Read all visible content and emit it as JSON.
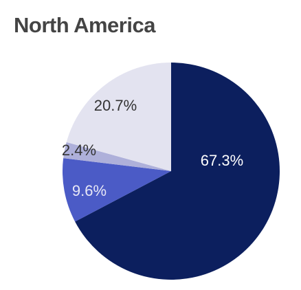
{
  "chart_data": {
    "type": "pie",
    "title": "North America",
    "categories": [
      null,
      null,
      null,
      null
    ],
    "values": [
      67.3,
      9.6,
      2.4,
      20.7
    ],
    "value_labels": [
      "67.3%",
      "9.6%",
      "2.4%",
      "20.7%"
    ],
    "colors": [
      "#0c1f5e",
      "#4b5bc6",
      "#aeb0da",
      "#e3e3f0"
    ]
  }
}
